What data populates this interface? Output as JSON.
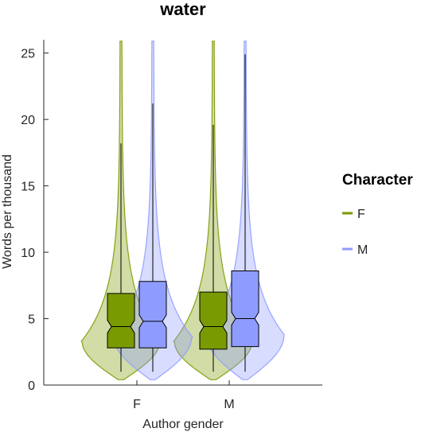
{
  "chart_data": {
    "type": "violin",
    "title": "water",
    "xlabel": "Author gender",
    "ylabel": "Words per thousand",
    "ylim": [
      0,
      26
    ],
    "yticks": [
      0,
      5,
      10,
      15,
      20,
      25
    ],
    "categories": [
      "F",
      "M"
    ],
    "legend": {
      "title": "Character",
      "placement": "right",
      "entries": [
        "F",
        "M"
      ]
    },
    "colors": {
      "F": "#7a9a01",
      "M": "#8e9cff"
    },
    "series": [
      {
        "name": "F",
        "groups": [
          {
            "author": "F",
            "q1": 2.8,
            "median": 4.4,
            "q3": 6.9,
            "whisker_low": 1.0,
            "whisker_high": 18.2,
            "violin_top": 26,
            "violin_bottom": 0.4
          },
          {
            "author": "M",
            "q1": 2.7,
            "median": 4.4,
            "q3": 7.0,
            "whisker_low": 1.0,
            "whisker_high": 19.6,
            "violin_top": 26,
            "violin_bottom": 0.4
          }
        ]
      },
      {
        "name": "M",
        "groups": [
          {
            "author": "F",
            "q1": 2.8,
            "median": 4.8,
            "q3": 7.8,
            "whisker_low": 1.0,
            "whisker_high": 21.2,
            "violin_top": 26,
            "violin_bottom": 0.4
          },
          {
            "author": "M",
            "q1": 2.9,
            "median": 5.0,
            "q3": 8.6,
            "whisker_low": 1.0,
            "whisker_high": 24.9,
            "violin_top": 26,
            "violin_bottom": 0.4
          }
        ]
      }
    ]
  }
}
